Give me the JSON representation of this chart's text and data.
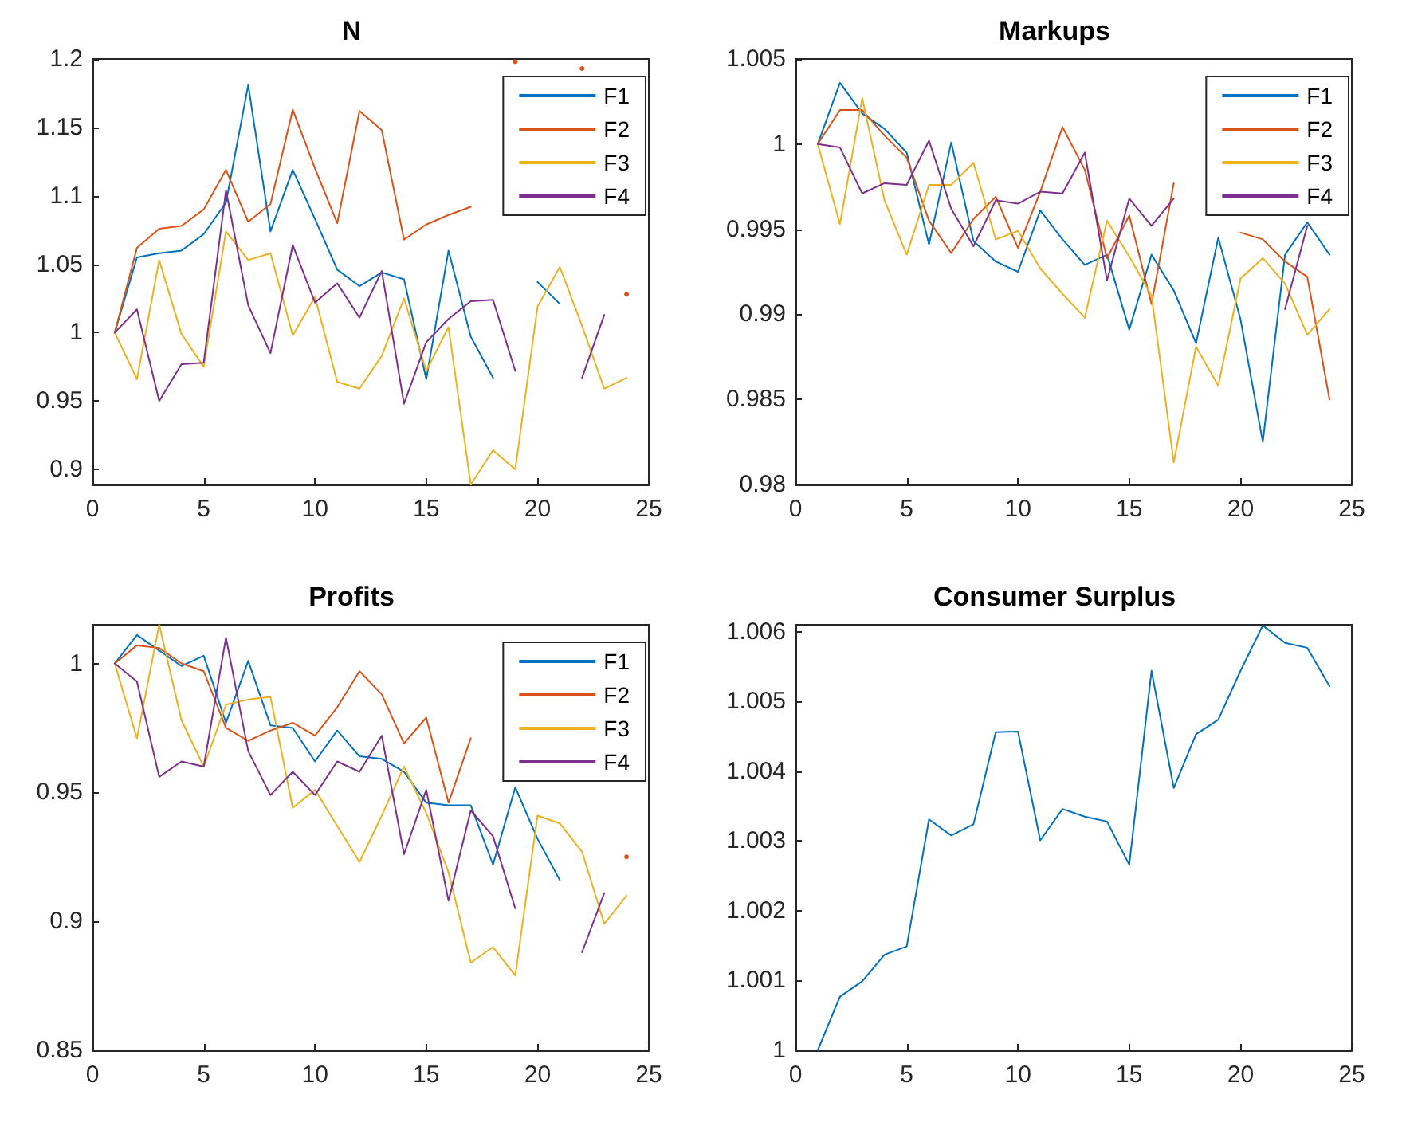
{
  "chart_data": [
    {
      "type": "line",
      "title": "N",
      "x": [
        1,
        2,
        3,
        4,
        5,
        6,
        7,
        8,
        9,
        10,
        11,
        12,
        13,
        14,
        15,
        16,
        17,
        18,
        19,
        20,
        21,
        22,
        23,
        24
      ],
      "xlim": [
        0,
        25
      ],
      "xticks": [
        0,
        5,
        10,
        15,
        20,
        25
      ],
      "ylim": [
        0.889,
        1.2
      ],
      "yticks": [
        0.9,
        0.95,
        1,
        1.05,
        1.1,
        1.15,
        1.2
      ],
      "legend": "top right",
      "series": [
        {
          "name": "F1",
          "color": "#0072bd",
          "values": [
            1.0,
            1.055,
            1.058,
            1.06,
            1.072,
            1.095,
            1.181,
            1.074,
            1.119,
            1.083,
            1.046,
            1.034,
            1.044,
            1.039,
            0.966,
            1.06,
            0.997,
            0.967,
            null,
            1.037,
            1.021,
            null,
            null,
            null
          ]
        },
        {
          "name": "F2",
          "color": "#d95319",
          "values": [
            1.0,
            1.062,
            1.076,
            1.078,
            1.09,
            1.119,
            1.081,
            1.094,
            1.163,
            1.12,
            1.08,
            1.162,
            1.148,
            1.068,
            1.079,
            1.086,
            1.092,
            null,
            1.198,
            null,
            null,
            1.193,
            null,
            1.028
          ]
        },
        {
          "name": "F3",
          "color": "#edb120",
          "values": [
            1.0,
            0.966,
            1.053,
            0.999,
            0.975,
            1.074,
            1.053,
            1.058,
            0.998,
            1.026,
            0.964,
            0.959,
            0.983,
            1.025,
            0.972,
            1.004,
            0.889,
            0.914,
            0.9,
            1.019,
            1.048,
            1.005,
            0.959,
            0.967
          ]
        },
        {
          "name": "F4",
          "color": "#7e2f8e",
          "values": [
            1.0,
            1.017,
            0.95,
            0.977,
            0.978,
            1.104,
            1.02,
            0.985,
            1.064,
            1.022,
            1.036,
            1.011,
            1.045,
            0.948,
            0.993,
            1.01,
            1.023,
            1.024,
            0.972,
            null,
            null,
            0.967,
            1.013,
            null
          ]
        }
      ]
    },
    {
      "type": "line",
      "title": "Markups",
      "x": [
        1,
        2,
        3,
        4,
        5,
        6,
        7,
        8,
        9,
        10,
        11,
        12,
        13,
        14,
        15,
        16,
        17,
        18,
        19,
        20,
        21,
        22,
        23,
        24
      ],
      "xlim": [
        0,
        25
      ],
      "xticks": [
        0,
        5,
        10,
        15,
        20,
        25
      ],
      "ylim": [
        0.98,
        1.005
      ],
      "yticks": [
        0.98,
        0.985,
        0.99,
        0.995,
        1,
        1.005
      ],
      "legend": "top right",
      "series": [
        {
          "name": "F1",
          "color": "#0072bd",
          "values": [
            1.0,
            1.0036,
            1.0018,
            1.0009,
            0.9995,
            0.9941,
            1.0001,
            0.9943,
            0.9931,
            0.9925,
            0.9961,
            0.9944,
            0.9929,
            0.9935,
            0.9891,
            0.9935,
            0.9914,
            0.9883,
            0.9945,
            0.9897,
            0.9825,
            0.9935,
            0.9954,
            0.9935
          ]
        },
        {
          "name": "F2",
          "color": "#d95319",
          "values": [
            1.0,
            1.002,
            1.002,
            1.0005,
            0.9992,
            0.9955,
            0.9936,
            0.9956,
            0.9969,
            0.9939,
            0.9972,
            1.001,
            0.9985,
            0.9933,
            0.9958,
            0.9906,
            0.9977,
            null,
            null,
            0.9948,
            0.9944,
            0.9931,
            0.9922,
            0.985
          ]
        },
        {
          "name": "F3",
          "color": "#edb120",
          "values": [
            1.0,
            0.9953,
            1.0027,
            0.9967,
            0.9935,
            0.9976,
            0.9976,
            0.9989,
            0.9944,
            0.9949,
            0.9927,
            0.9912,
            0.9898,
            0.9955,
            0.9934,
            0.9911,
            0.9813,
            0.9881,
            0.9858,
            0.9921,
            0.9933,
            0.9918,
            0.9888,
            0.9903
          ]
        },
        {
          "name": "F4",
          "color": "#7e2f8e",
          "values": [
            1.0,
            0.9998,
            0.9971,
            0.9977,
            0.9976,
            1.0002,
            0.9962,
            0.994,
            0.9967,
            0.9965,
            0.9972,
            0.9971,
            0.9995,
            0.992,
            0.9968,
            0.9952,
            0.9968,
            null,
            null,
            null,
            null,
            0.9903,
            0.9952,
            null
          ]
        }
      ]
    },
    {
      "type": "line",
      "title": "Profits",
      "x": [
        1,
        2,
        3,
        4,
        5,
        6,
        7,
        8,
        9,
        10,
        11,
        12,
        13,
        14,
        15,
        16,
        17,
        18,
        19,
        20,
        21,
        22,
        23,
        24
      ],
      "xlim": [
        0,
        25
      ],
      "xticks": [
        0,
        5,
        10,
        15,
        20,
        25
      ],
      "ylim": [
        0.85,
        1.015
      ],
      "yticks": [
        0.85,
        0.9,
        0.95,
        1
      ],
      "legend": "top right",
      "series": [
        {
          "name": "F1",
          "color": "#0072bd",
          "values": [
            1.0,
            1.011,
            1.005,
            0.999,
            1.003,
            0.977,
            1.001,
            0.976,
            0.975,
            0.962,
            0.974,
            0.964,
            0.963,
            0.958,
            0.946,
            0.945,
            0.945,
            0.922,
            0.952,
            0.932,
            0.916,
            null,
            null,
            null
          ]
        },
        {
          "name": "F2",
          "color": "#d95319",
          "values": [
            1.0,
            1.007,
            1.006,
            1.0,
            0.997,
            0.975,
            0.97,
            0.974,
            0.977,
            0.972,
            0.983,
            0.997,
            0.988,
            0.969,
            0.979,
            0.946,
            0.971,
            null,
            null,
            null,
            null,
            null,
            null,
            0.925
          ]
        },
        {
          "name": "F3",
          "color": "#edb120",
          "values": [
            1.0,
            0.971,
            1.015,
            0.978,
            0.96,
            0.984,
            0.986,
            0.987,
            0.944,
            0.951,
            0.937,
            0.923,
            0.941,
            0.96,
            0.942,
            0.919,
            0.884,
            0.89,
            0.879,
            0.941,
            0.938,
            0.927,
            0.899,
            0.91
          ]
        },
        {
          "name": "F4",
          "color": "#7e2f8e",
          "values": [
            1.0,
            0.993,
            0.956,
            0.962,
            0.96,
            1.01,
            0.966,
            0.949,
            0.958,
            0.949,
            0.962,
            0.958,
            0.972,
            0.926,
            0.951,
            0.908,
            0.943,
            0.933,
            0.905,
            null,
            null,
            0.888,
            0.911,
            null
          ]
        }
      ]
    },
    {
      "type": "line",
      "title": "Consumer Surplus",
      "x": [
        1,
        2,
        3,
        4,
        5,
        6,
        7,
        8,
        9,
        10,
        11,
        12,
        13,
        14,
        15,
        16,
        17,
        18,
        19,
        20,
        21,
        22,
        23,
        24
      ],
      "xlim": [
        0,
        25
      ],
      "xticks": [
        0,
        5,
        10,
        15,
        20,
        25
      ],
      "ylim": [
        1,
        1.0061
      ],
      "yticks": [
        1,
        1.001,
        1.002,
        1.003,
        1.004,
        1.005,
        1.006
      ],
      "series": [
        {
          "color": "#0072bd",
          "values": [
            1.0,
            1.00077,
            1.00099,
            1.00137,
            1.00149,
            1.00331,
            1.00308,
            1.00324,
            1.00456,
            1.00457,
            1.00301,
            1.00346,
            1.00335,
            1.00328,
            1.00266,
            1.00544,
            1.00376,
            1.00453,
            1.00474,
            1.00544,
            1.00609,
            1.00584,
            1.00577,
            1.00522
          ]
        }
      ]
    }
  ]
}
